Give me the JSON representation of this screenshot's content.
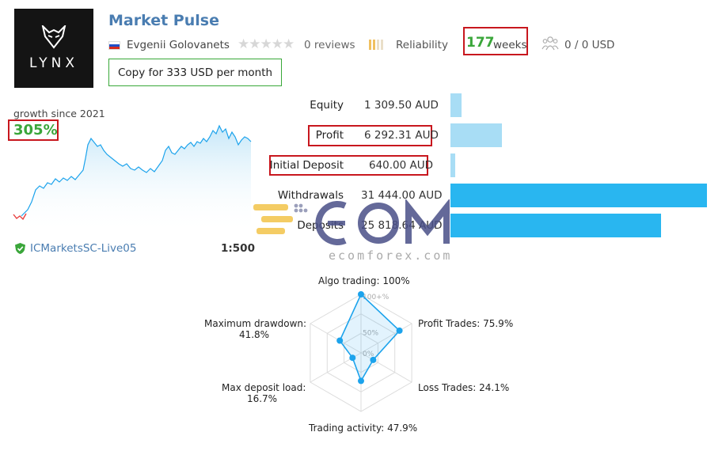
{
  "signal": {
    "title": "Market Pulse",
    "author": "Evgenii Golovanets",
    "reviews": "0 reviews",
    "reliability_label": "Reliability",
    "weeks_number": "177",
    "weeks_label": "weeks",
    "subscribers": "0 / 0 USD",
    "copy_button": "Copy for 333 USD per month",
    "logo_text": "LYNX"
  },
  "growth": {
    "label": "growth since 2021",
    "value": "305%",
    "server": "ICMarketsSC-Live05",
    "leverage": "1:500"
  },
  "stats": [
    {
      "label": "Equity",
      "value": "1 309.50 AUD",
      "bar_fraction": 0.042,
      "bar_color": "#a8ddf5"
    },
    {
      "label": "Profit",
      "value": "6 292.31 AUD",
      "bar_fraction": 0.2,
      "bar_color": "#a8ddf5"
    },
    {
      "label": "Initial Deposit",
      "value": "640.00 AUD",
      "bar_fraction": 0.02,
      "bar_color": "#a8ddf5"
    },
    {
      "label": "Withdrawals",
      "value": "31 444.00 AUD",
      "bar_fraction": 1.0,
      "bar_color": "#29b6f0"
    },
    {
      "label": "Deposits",
      "value": "25 818.64 AUD",
      "bar_fraction": 0.82,
      "bar_color": "#29b6f0"
    }
  ],
  "radar": {
    "grid_labels": [
      "100+%",
      "50%",
      "0%"
    ],
    "axes": [
      {
        "name": "Algo trading:",
        "value_text": "100%",
        "value": 1.0
      },
      {
        "name": "Profit Trades:",
        "value_text": "75.9%",
        "value": 0.759
      },
      {
        "name": "Loss Trades:",
        "value_text": "24.1%",
        "value": 0.241
      },
      {
        "name": "Trading activity:",
        "value_text": "47.9%",
        "value": 0.479
      },
      {
        "name": "Max deposit load:",
        "value_text": "16.7%",
        "value": 0.167
      },
      {
        "name": "Maximum drawdown:",
        "value_text": "41.8%",
        "value": 0.418
      }
    ]
  },
  "watermark": {
    "brand": "ECOM",
    "domain": "ecomforex.com"
  },
  "colors": {
    "title_blue": "#4a7db1",
    "green": "#3aa63a",
    "highlight_red": "#c8171e",
    "radar_blue": "#1ca3ec"
  }
}
